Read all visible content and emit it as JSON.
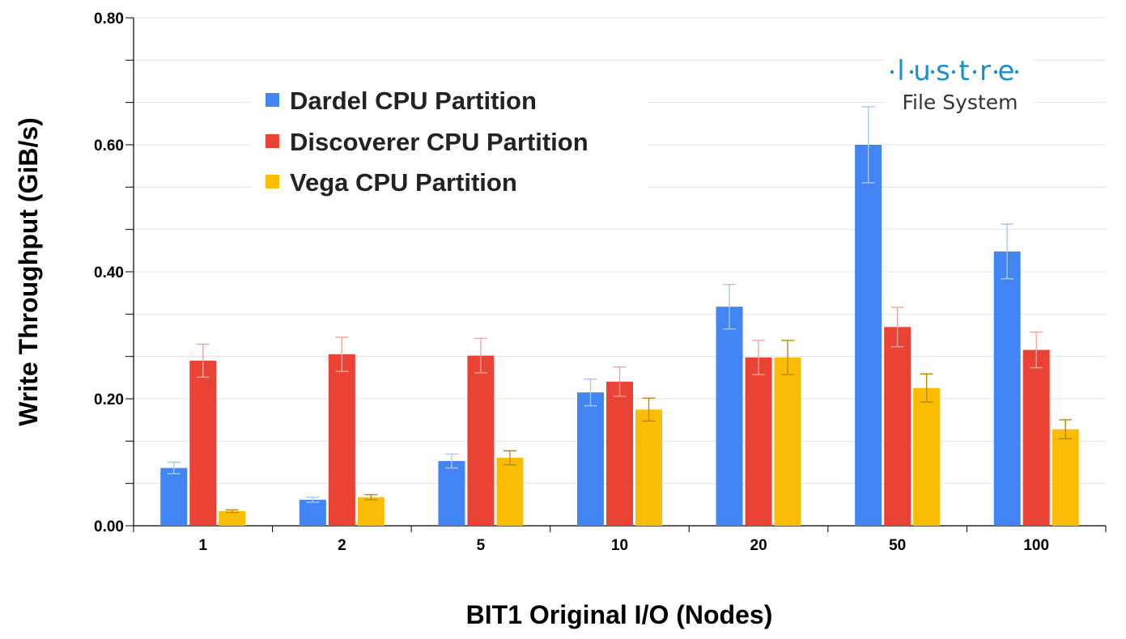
{
  "chart_data": {
    "type": "bar",
    "title": "",
    "xlabel": "BIT1 Original I/O (Nodes)",
    "ylabel": "Write Throughput (GiB/s)",
    "categories": [
      "1",
      "2",
      "5",
      "10",
      "20",
      "50",
      "100"
    ],
    "ylim": [
      0,
      0.8
    ],
    "yticks": [
      0.0,
      0.2,
      0.4,
      0.6,
      0.8
    ],
    "ytick_labels": [
      "0.00",
      "0.20",
      "0.40",
      "0.60",
      "0.80"
    ],
    "grid": true,
    "legend_position": "top-left",
    "series": [
      {
        "name": "Dardel CPU Partition",
        "color": "#4285f4",
        "error_color": "#a9c7f7",
        "values": [
          0.091,
          0.041,
          0.102,
          0.21,
          0.345,
          0.6,
          0.432
        ],
        "errors": [
          0.009,
          0.004,
          0.011,
          0.021,
          0.035,
          0.06,
          0.043
        ]
      },
      {
        "name": "Discoverer CPU Partition",
        "color": "#ea4335",
        "error_color": "#f2a49c",
        "values": [
          0.26,
          0.27,
          0.268,
          0.227,
          0.265,
          0.313,
          0.277
        ],
        "errors": [
          0.026,
          0.027,
          0.027,
          0.023,
          0.027,
          0.031,
          0.028
        ]
      },
      {
        "name": "Vega CPU Partition",
        "color": "#fbbc04",
        "error_color": "#b78a06",
        "values": [
          0.023,
          0.045,
          0.107,
          0.183,
          0.265,
          0.217,
          0.152
        ],
        "errors": [
          0.002,
          0.004,
          0.011,
          0.018,
          0.027,
          0.022,
          0.015
        ]
      }
    ]
  },
  "logo": {
    "letters": [
      "l",
      "u",
      "s",
      "t",
      "r",
      "e"
    ],
    "subtitle": "File System",
    "color": "#1a8fc9",
    "icon": "lustre-logo"
  }
}
